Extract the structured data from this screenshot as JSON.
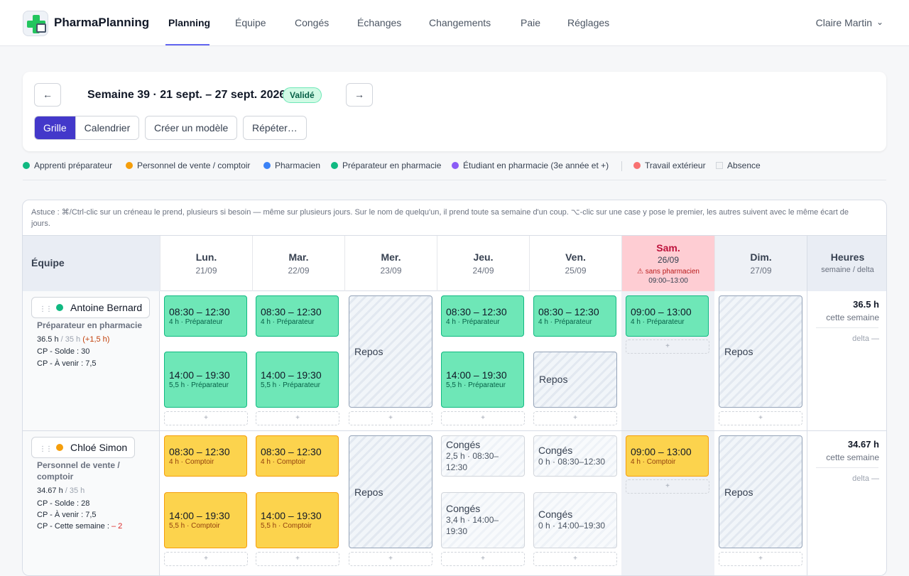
{
  "app": {
    "name": "PharmaPlanning"
  },
  "nav": {
    "items": [
      "Planning",
      "Équipe",
      "Congés",
      "Échanges",
      "Changements",
      "Paie",
      "Réglages"
    ],
    "active": "Planning"
  },
  "user": {
    "name": "Claire Martin"
  },
  "week": {
    "prev_icon": "←",
    "next_icon": "→",
    "title": "Semaine 39 · 21 sept. – 27 sept. 2026",
    "status": "Validé",
    "view_grid": "Grille",
    "view_calendar": "Calendrier",
    "active_view": "Grille",
    "create_template": "Créer un modèle",
    "repeat": "Répéter…"
  },
  "legend": [
    {
      "label": "Apprenti préparateur",
      "color": "#10b981"
    },
    {
      "label": "Personnel de vente / comptoir",
      "color": "#f59e0b"
    },
    {
      "label": "Pharmacien",
      "color": "#3b82f6"
    },
    {
      "label": "Préparateur en pharmacie",
      "color": "#10b981"
    },
    {
      "label": "Étudiant en pharmacie (3e année et +)",
      "color": "#8b5cf6"
    },
    {
      "label": "Travail extérieur",
      "color": "#f87171"
    },
    {
      "label": "Absence",
      "color": "#f3f4f6"
    }
  ],
  "tip": "Astuce : ⌘/Ctrl-clic sur un créneau le prend, plusieurs si besoin — même sur plusieurs jours. Sur le nom de quelqu'un, il prend toute sa semaine d'un coup. ⌥-clic sur une case y pose le premier, les autres suivent avec le même écart de jours.",
  "table": {
    "team_header": "Équipe",
    "hours_header": "Heures",
    "hours_sub": "semaine / delta",
    "days": [
      {
        "name": "Lun.",
        "date": "21/09"
      },
      {
        "name": "Mar.",
        "date": "22/09"
      },
      {
        "name": "Mer.",
        "date": "23/09"
      },
      {
        "name": "Jeu.",
        "date": "24/09"
      },
      {
        "name": "Ven.",
        "date": "25/09"
      },
      {
        "name": "Sam.",
        "date": "26/09",
        "warning": "⚠ sans pharmacien",
        "warning_time": "09:00–13:00"
      },
      {
        "name": "Dim.",
        "date": "27/09"
      }
    ],
    "add_label": "+",
    "rest_label": "Repos",
    "leave_label": "Congés"
  },
  "employees": [
    {
      "name": "Antoine Bernard",
      "color": "#10b981",
      "role": "Préparateur en pharmacie",
      "hours": "36.5 h",
      "contract": " / 35 h",
      "overtime": "(+1,5 h)",
      "cp_solde": "CP - Solde : 30",
      "cp_avenir": "CP - À venir : 7,5",
      "total": "36.5 h",
      "total_label": "cette semaine",
      "delta": "delta —",
      "shifts": {
        "mon_am": {
          "time": "08:30 – 12:30",
          "sub": "4 h · Préparateur"
        },
        "mon_pm": {
          "time": "14:00 – 19:30",
          "sub": "5,5 h · Préparateur"
        },
        "tue_am": {
          "time": "08:30 – 12:30",
          "sub": "4 h · Préparateur"
        },
        "tue_pm": {
          "time": "14:00 – 19:30",
          "sub": "5,5 h · Préparateur"
        },
        "thu_am": {
          "time": "08:30 – 12:30",
          "sub": "4 h · Préparateur"
        },
        "thu_pm": {
          "time": "14:00 – 19:30",
          "sub": "5,5 h · Préparateur"
        },
        "fri_am": {
          "time": "08:30 – 12:30",
          "sub": "4 h · Préparateur"
        },
        "sat_am": {
          "time": "09:00 – 13:00",
          "sub": "4 h · Préparateur"
        }
      }
    },
    {
      "name": "Chloé Simon",
      "color": "#f59e0b",
      "role": "Personnel de vente / comptoir",
      "hours": "34.67 h",
      "contract": " / 35 h",
      "cp_solde": "CP - Solde : 28",
      "cp_avenir": "CP - À venir : 7,5",
      "cp_week_label": "CP - Cette semaine : ",
      "cp_week_value": "– 2",
      "total": "34.67 h",
      "total_label": "cette semaine",
      "delta": "delta —",
      "shifts": {
        "mon_am": {
          "time": "08:30 – 12:30",
          "sub": "4 h · Comptoir"
        },
        "mon_pm": {
          "time": "14:00 – 19:30",
          "sub": "5,5 h · Comptoir"
        },
        "tue_am": {
          "time": "08:30 – 12:30",
          "sub": "4 h · Comptoir"
        },
        "tue_pm": {
          "time": "14:00 – 19:30",
          "sub": "5,5 h · Comptoir"
        },
        "sat_am": {
          "time": "09:00 – 13:00",
          "sub": "4 h · Comptoir"
        }
      },
      "leaves": {
        "thu_am": "2,5 h · 08:30–12:30",
        "thu_pm": "3,4 h · 14:00–19:30",
        "fri_am": "0 h · 08:30–12:30",
        "fri_pm": "0 h · 14:00–19:30"
      }
    }
  ]
}
